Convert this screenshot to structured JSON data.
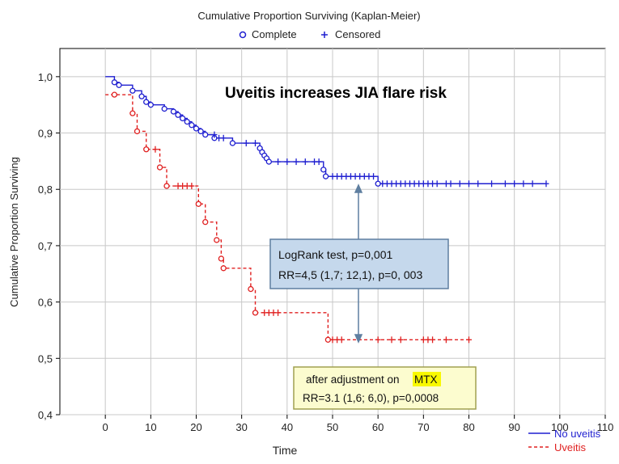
{
  "chart_data": {
    "type": "line",
    "subtype": "kaplan-meier",
    "title": "Cumulative Proportion Surviving (Kaplan-Meier)",
    "legend_top": [
      {
        "symbol": "o",
        "label": "Complete"
      },
      {
        "symbol": "+",
        "label": "Censored"
      }
    ],
    "xlabel": "Time",
    "ylabel": "Cumulative Proportion Surviving",
    "xlim": [
      -10,
      110
    ],
    "ylim": [
      0.4,
      1.05
    ],
    "xticks": [
      0,
      10,
      20,
      30,
      40,
      50,
      60,
      70,
      80,
      90,
      100,
      110
    ],
    "yticks": [
      0.4,
      0.5,
      0.6,
      0.7,
      0.8,
      0.9,
      1.0
    ],
    "ytick_labels": [
      "0,4",
      "0,5",
      "0,6",
      "0,7",
      "0,8",
      "0,9",
      "1,0"
    ],
    "grid": true,
    "annotation_main": "Uveitis increases JIA flare risk",
    "series": [
      {
        "name": "No uveitis",
        "color": "#1f1fd0",
        "dash": "solid",
        "steps": [
          [
            0,
            1.0
          ],
          [
            2,
            0.99
          ],
          [
            3,
            0.985
          ],
          [
            6,
            0.975
          ],
          [
            8,
            0.965
          ],
          [
            9,
            0.955
          ],
          [
            10,
            0.95
          ],
          [
            13,
            0.943
          ],
          [
            15,
            0.938
          ],
          [
            16,
            0.932
          ],
          [
            17,
            0.926
          ],
          [
            18,
            0.92
          ],
          [
            19,
            0.914
          ],
          [
            20,
            0.908
          ],
          [
            21,
            0.903
          ],
          [
            22,
            0.897
          ],
          [
            24,
            0.891
          ],
          [
            28,
            0.882
          ],
          [
            34,
            0.873
          ],
          [
            34.5,
            0.866
          ],
          [
            35,
            0.86
          ],
          [
            35.5,
            0.855
          ],
          [
            36,
            0.849
          ],
          [
            48,
            0.835
          ],
          [
            48.5,
            0.823
          ],
          [
            60,
            0.81
          ],
          [
            97,
            0.81
          ]
        ],
        "events": [
          [
            2,
            0.99
          ],
          [
            3,
            0.985
          ],
          [
            6,
            0.975
          ],
          [
            8,
            0.965
          ],
          [
            9,
            0.955
          ],
          [
            10,
            0.95
          ],
          [
            13,
            0.943
          ],
          [
            15,
            0.938
          ],
          [
            16,
            0.932
          ],
          [
            17,
            0.926
          ],
          [
            18,
            0.92
          ],
          [
            19,
            0.914
          ],
          [
            20,
            0.908
          ],
          [
            21,
            0.903
          ],
          [
            22,
            0.897
          ],
          [
            24,
            0.891
          ],
          [
            28,
            0.882
          ],
          [
            34,
            0.873
          ],
          [
            34.5,
            0.866
          ],
          [
            35,
            0.86
          ],
          [
            35.5,
            0.855
          ],
          [
            36,
            0.849
          ],
          [
            48,
            0.835
          ],
          [
            48.5,
            0.823
          ],
          [
            60,
            0.81
          ]
        ],
        "censored": [
          [
            24,
            0.897
          ],
          [
            25,
            0.891
          ],
          [
            26,
            0.891
          ],
          [
            31,
            0.882
          ],
          [
            33,
            0.882
          ],
          [
            38,
            0.849
          ],
          [
            40,
            0.849
          ],
          [
            42,
            0.849
          ],
          [
            44,
            0.849
          ],
          [
            46,
            0.849
          ],
          [
            47,
            0.849
          ],
          [
            50,
            0.823
          ],
          [
            51,
            0.823
          ],
          [
            52,
            0.823
          ],
          [
            53,
            0.823
          ],
          [
            54,
            0.823
          ],
          [
            55,
            0.823
          ],
          [
            56,
            0.823
          ],
          [
            57,
            0.823
          ],
          [
            58,
            0.823
          ],
          [
            59,
            0.823
          ],
          [
            61,
            0.81
          ],
          [
            62,
            0.81
          ],
          [
            63,
            0.81
          ],
          [
            64,
            0.81
          ],
          [
            65,
            0.81
          ],
          [
            66,
            0.81
          ],
          [
            67,
            0.81
          ],
          [
            68,
            0.81
          ],
          [
            69,
            0.81
          ],
          [
            70,
            0.81
          ],
          [
            71,
            0.81
          ],
          [
            72,
            0.81
          ],
          [
            73,
            0.81
          ],
          [
            75,
            0.81
          ],
          [
            76,
            0.81
          ],
          [
            78,
            0.81
          ],
          [
            80,
            0.81
          ],
          [
            82,
            0.81
          ],
          [
            85,
            0.81
          ],
          [
            88,
            0.81
          ],
          [
            90,
            0.81
          ],
          [
            92,
            0.81
          ],
          [
            94,
            0.81
          ],
          [
            97,
            0.81
          ]
        ]
      },
      {
        "name": "Uveitis",
        "color": "#e02020",
        "dash": "dashed",
        "steps": [
          [
            0,
            0.968
          ],
          [
            6,
            0.935
          ],
          [
            7,
            0.903
          ],
          [
            9,
            0.871
          ],
          [
            12,
            0.839
          ],
          [
            13.5,
            0.806
          ],
          [
            20.5,
            0.774
          ],
          [
            22,
            0.742
          ],
          [
            24.5,
            0.71
          ],
          [
            25.5,
            0.677
          ],
          [
            26,
            0.66
          ],
          [
            32,
            0.623
          ],
          [
            33,
            0.581
          ],
          [
            49,
            0.533
          ],
          [
            80,
            0.533
          ]
        ],
        "events": [
          [
            2,
            0.968
          ],
          [
            6,
            0.935
          ],
          [
            7,
            0.903
          ],
          [
            9,
            0.871
          ],
          [
            12,
            0.839
          ],
          [
            13.5,
            0.806
          ],
          [
            20.5,
            0.774
          ],
          [
            22,
            0.742
          ],
          [
            24.5,
            0.71
          ],
          [
            25.5,
            0.677
          ],
          [
            26,
            0.66
          ],
          [
            32,
            0.623
          ],
          [
            33,
            0.581
          ],
          [
            49,
            0.533
          ]
        ],
        "censored": [
          [
            11,
            0.871
          ],
          [
            16,
            0.806
          ],
          [
            17,
            0.806
          ],
          [
            18,
            0.806
          ],
          [
            19,
            0.806
          ],
          [
            35,
            0.581
          ],
          [
            36,
            0.581
          ],
          [
            37,
            0.581
          ],
          [
            38,
            0.581
          ],
          [
            50,
            0.533
          ],
          [
            51,
            0.533
          ],
          [
            52,
            0.533
          ],
          [
            60,
            0.533
          ],
          [
            63,
            0.533
          ],
          [
            65,
            0.533
          ],
          [
            70,
            0.533
          ],
          [
            71,
            0.533
          ],
          [
            72,
            0.533
          ],
          [
            75,
            0.533
          ],
          [
            80,
            0.533
          ]
        ]
      }
    ],
    "logrank_box": {
      "line1": "LogRank test, p=0,001",
      "line2": "RR=4,5 (1,7; 12,1), p=0, 003"
    },
    "adjust_box": {
      "line1_prefix": "after adjustment on ",
      "line1_highlight": "MTX",
      "line2": "RR=3.1 (1,6; 6,0), p=0,0008"
    },
    "legend_bottom": [
      {
        "label": "No uveitis",
        "color": "#1f1fd0",
        "dash": "solid"
      },
      {
        "label": "Uveitis",
        "color": "#e02020",
        "dash": "dashed"
      }
    ],
    "colors": {
      "grid": "#c8c8c8",
      "logrank_box_fill": "#c5d8ec",
      "logrank_box_border": "#5f7fa0",
      "adjust_box_fill": "#fcfccf",
      "adjust_box_border": "#a0a050",
      "highlight": "#f8f800",
      "arrow": "#5f7fa0",
      "annotation_main": "#000000"
    }
  }
}
